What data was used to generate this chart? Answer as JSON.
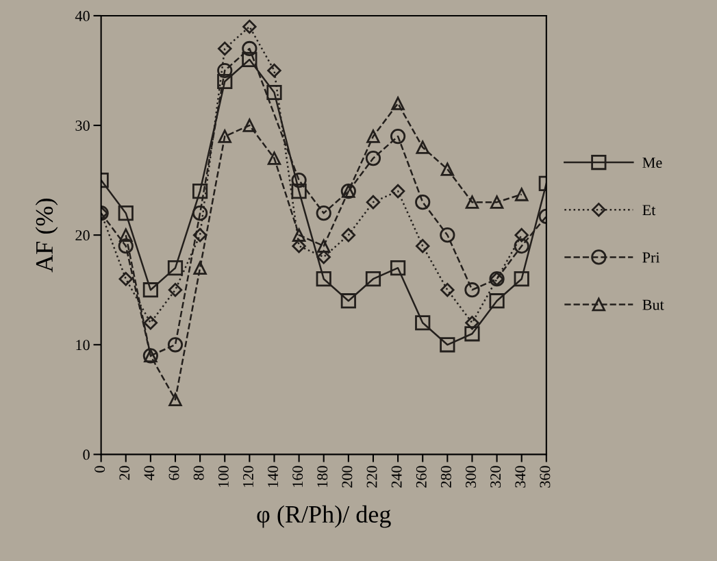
{
  "chart_data": {
    "type": "line",
    "xlabel": "φ (R/Ph)/ deg",
    "ylabel": "AF (%)",
    "x": [
      0,
      20,
      40,
      60,
      80,
      100,
      120,
      140,
      160,
      180,
      200,
      220,
      240,
      260,
      280,
      300,
      320,
      340,
      360
    ],
    "xlim": [
      0,
      360
    ],
    "xticks": [
      0,
      20,
      40,
      60,
      80,
      100,
      120,
      140,
      160,
      180,
      200,
      220,
      240,
      260,
      280,
      300,
      320,
      340,
      360
    ],
    "ylim": [
      0,
      40
    ],
    "yticks": [
      0,
      10,
      20,
      30,
      40
    ],
    "grid": false,
    "legend": "right",
    "series": [
      {
        "name": "Me",
        "color": "#231f1c",
        "marker": "square",
        "line_style": "solid",
        "values": [
          25,
          22,
          15,
          17,
          24,
          34,
          36,
          33,
          24,
          16,
          14,
          16,
          17,
          12,
          10,
          11,
          14,
          16,
          24.7
        ]
      },
      {
        "name": "Et",
        "color": "#231f1c",
        "marker": "diamond",
        "line_style": "dotted",
        "values": [
          22,
          16,
          12,
          15,
          20,
          37,
          39,
          35,
          19,
          18,
          20,
          23,
          24,
          19,
          15,
          12,
          16,
          20,
          null
        ]
      },
      {
        "name": "Pri",
        "color": "#231f1c",
        "marker": "circle",
        "line_style": "dashed",
        "values": [
          22,
          19,
          9,
          10,
          22,
          35,
          37,
          null,
          25,
          22,
          24,
          27,
          29,
          23,
          20,
          15,
          16,
          19,
          21.7
        ]
      },
      {
        "name": "But",
        "color": "#231f1c",
        "marker": "triangle",
        "line_style": "dashed",
        "values": [
          null,
          20,
          9,
          5,
          17,
          29,
          30,
          27,
          20,
          19,
          24,
          29,
          32,
          28,
          26,
          23,
          23,
          23.7,
          null
        ]
      }
    ]
  }
}
